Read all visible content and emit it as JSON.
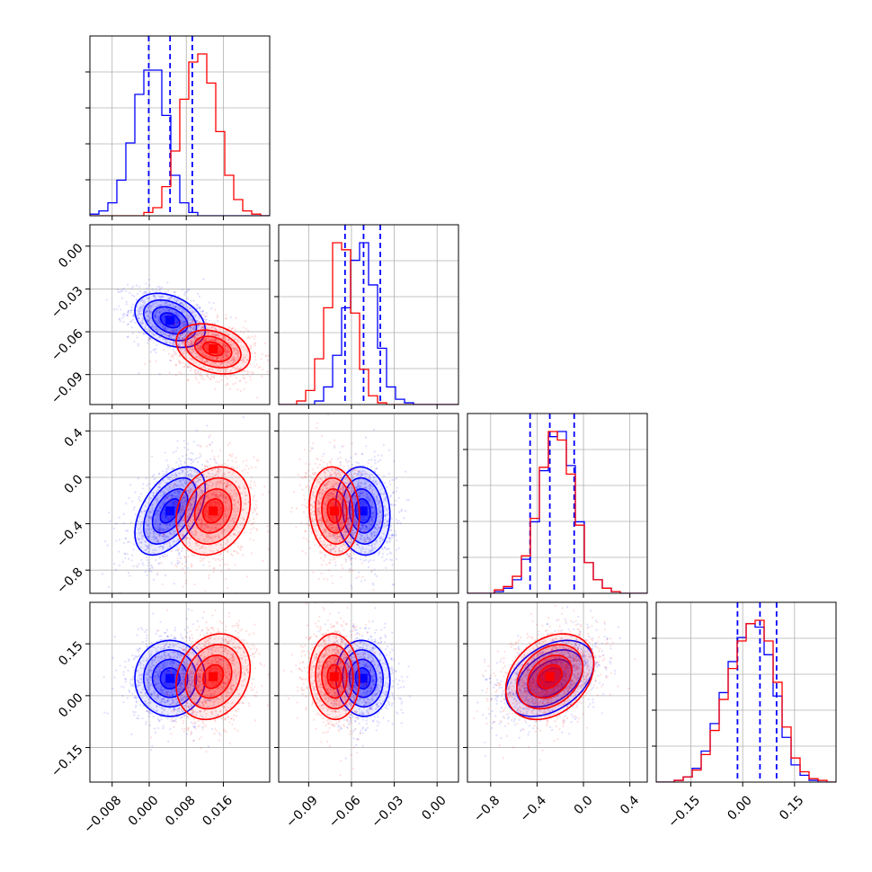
{
  "chart_data": {
    "type": "corner",
    "parameters": [
      {
        "ticks": [
          -0.008,
          0.0,
          0.008,
          0.016
        ],
        "tick_labels": [
          "−0.008",
          "0.000",
          "0.008",
          "0.016"
        ],
        "range": [
          -0.0128,
          0.026
        ]
      },
      {
        "ticks": [
          -0.09,
          -0.06,
          -0.03,
          0.0
        ],
        "tick_labels": [
          "−0.09",
          "−0.06",
          "−0.03",
          "0.00"
        ],
        "range": [
          -0.111,
          0.015
        ]
      },
      {
        "ticks": [
          -0.8,
          -0.4,
          0.0,
          0.4
        ],
        "tick_labels": [
          "−0.8",
          "−0.4",
          "0.0",
          "0.4"
        ],
        "range": [
          -1.0,
          0.55
        ]
      },
      {
        "ticks": [
          -0.15,
          0.0,
          0.15
        ],
        "tick_labels": [
          "−0.15",
          "0.00",
          "0.15"
        ],
        "range": [
          -0.25,
          0.27
        ]
      }
    ],
    "series": [
      {
        "color": "#0000ff",
        "mean": [
          0.0045,
          -0.052,
          -0.29,
          0.05
        ],
        "std": [
          0.0038,
          0.0095,
          0.19,
          0.055
        ],
        "corr": [
          [
            1,
            -0.35,
            0.5,
            0.0
          ],
          [
            -0.35,
            1,
            -0.1,
            -0.05
          ],
          [
            0.5,
            -0.1,
            1,
            0.4
          ],
          [
            0.0,
            -0.05,
            0.4,
            1
          ]
        ],
        "hist": [
          [
            1,
            3,
            8,
            22,
            45,
            75,
            90,
            90,
            62,
            25,
            8,
            2,
            0,
            0,
            0,
            0,
            0,
            0,
            0,
            0
          ],
          [
            0,
            0,
            0,
            0,
            2,
            10,
            28,
            55,
            82,
            92,
            68,
            32,
            10,
            3,
            1,
            0,
            0,
            0,
            0,
            0
          ],
          [
            0,
            0,
            0,
            1,
            3,
            8,
            20,
            42,
            72,
            92,
            95,
            75,
            42,
            18,
            8,
            3,
            1,
            0,
            0,
            0
          ],
          [
            0,
            0,
            1,
            3,
            8,
            18,
            34,
            52,
            70,
            84,
            92,
            90,
            74,
            50,
            26,
            10,
            4,
            1,
            0,
            0
          ]
        ],
        "quantiles": [
          [
            -0.0001,
            0.0045,
            0.0093
          ],
          [
            -0.0645,
            -0.0515,
            -0.0398
          ],
          [
            -0.46,
            -0.29,
            -0.08
          ],
          [
            -0.015,
            0.05,
            0.098
          ]
        ]
      },
      {
        "color": "#ff0000",
        "mean": [
          0.0138,
          -0.072,
          -0.29,
          0.055
        ],
        "std": [
          0.004,
          0.0088,
          0.19,
          0.062
        ],
        "corr": [
          [
            1,
            -0.3,
            0.2,
            0.2
          ],
          [
            -0.3,
            1,
            -0.1,
            -0.05
          ],
          [
            0.2,
            -0.1,
            1,
            0.3
          ],
          [
            0.2,
            -0.05,
            0.3,
            1
          ]
        ],
        "hist": [
          [
            0,
            0,
            0,
            0,
            0,
            0,
            2,
            5,
            18,
            40,
            72,
            95,
            100,
            82,
            52,
            25,
            10,
            3,
            1,
            0
          ],
          [
            0,
            0,
            2,
            8,
            26,
            55,
            92,
            88,
            52,
            20,
            5,
            1,
            0,
            0,
            0,
            0,
            0,
            0,
            0,
            0
          ],
          [
            0,
            0,
            0,
            2,
            4,
            10,
            22,
            44,
            74,
            95,
            90,
            70,
            40,
            18,
            8,
            3,
            1,
            0,
            0,
            0
          ],
          [
            0,
            0,
            1,
            3,
            7,
            16,
            30,
            48,
            66,
            82,
            92,
            94,
            82,
            58,
            32,
            14,
            6,
            2,
            1,
            0
          ]
        ]
      }
    ],
    "grid": true
  }
}
